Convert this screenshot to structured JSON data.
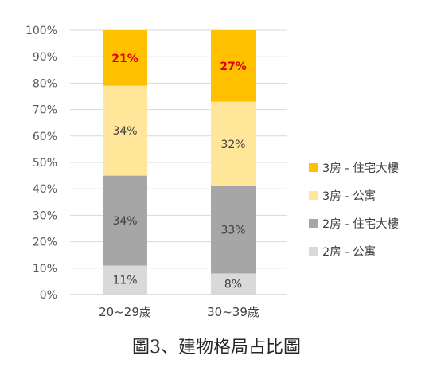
{
  "caption": "圖3、建物格局占比圖",
  "chart_data": {
    "type": "bar",
    "stacked": true,
    "percent_stacked": true,
    "categories": [
      "20~29歲",
      "30~39歲"
    ],
    "ylim": [
      0,
      100
    ],
    "yticks": [
      "0%",
      "10%",
      "20%",
      "30%",
      "40%",
      "50%",
      "60%",
      "70%",
      "80%",
      "90%",
      "100%"
    ],
    "grid": true,
    "legend_position": "right",
    "series": [
      {
        "name": "2房 - 公寓",
        "values": [
          11,
          8
        ],
        "labels": [
          "11%",
          "8%"
        ],
        "color": "#d9d9d9",
        "label_emphasis": false
      },
      {
        "name": "2房 - 住宅大樓",
        "values": [
          34,
          33
        ],
        "labels": [
          "34%",
          "33%"
        ],
        "color": "#a6a6a6",
        "label_emphasis": false
      },
      {
        "name": "3房 - 公寓",
        "values": [
          34,
          32
        ],
        "labels": [
          "34%",
          "32%"
        ],
        "color": "#ffe699",
        "label_emphasis": false
      },
      {
        "name": "3房 - 住宅大樓",
        "values": [
          21,
          27
        ],
        "labels": [
          "21%",
          "27%"
        ],
        "color": "#ffc000",
        "label_emphasis": true
      }
    ]
  }
}
